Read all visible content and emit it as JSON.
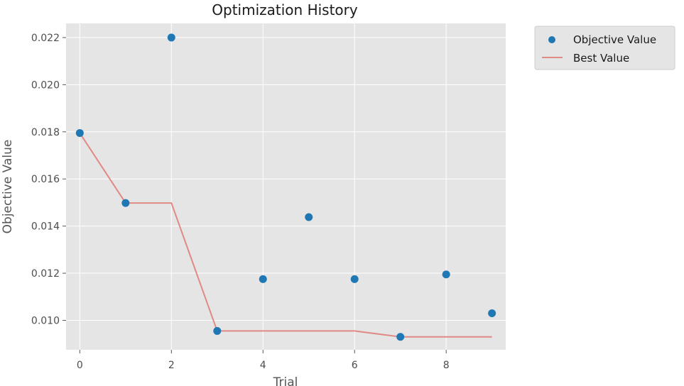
{
  "chart_data": {
    "type": "scatter",
    "title": "Optimization History",
    "xlabel": "Trial",
    "ylabel": "Objective Value",
    "xlim": [
      -0.3,
      9.3
    ],
    "ylim": [
      0.00875,
      0.0226
    ],
    "xticks": [
      0,
      2,
      4,
      6,
      8
    ],
    "yticks": [
      0.01,
      0.012,
      0.014,
      0.016,
      0.018,
      0.02,
      0.022
    ],
    "xtick_labels": [
      "0",
      "2",
      "4",
      "6",
      "8"
    ],
    "ytick_labels": [
      "0.010",
      "0.012",
      "0.014",
      "0.016",
      "0.018",
      "0.020",
      "0.022"
    ],
    "grid": true,
    "legend_placement": "outside-top-right",
    "series": [
      {
        "name": "Objective Value",
        "kind": "scatter",
        "color": "#1f77b4",
        "x": [
          0,
          1,
          2,
          3,
          4,
          5,
          6,
          7,
          8,
          9
        ],
        "y": [
          0.01795,
          0.01498,
          0.022,
          0.00955,
          0.01175,
          0.01438,
          0.01175,
          0.0093,
          0.01195,
          0.0103
        ]
      },
      {
        "name": "Best Value",
        "kind": "line",
        "color": "#e08a86",
        "x": [
          0,
          1,
          2,
          3,
          4,
          5,
          6,
          7,
          8,
          9
        ],
        "y": [
          0.01795,
          0.01498,
          0.01498,
          0.00955,
          0.00955,
          0.00955,
          0.00955,
          0.0093,
          0.0093,
          0.0093
        ]
      }
    ]
  }
}
